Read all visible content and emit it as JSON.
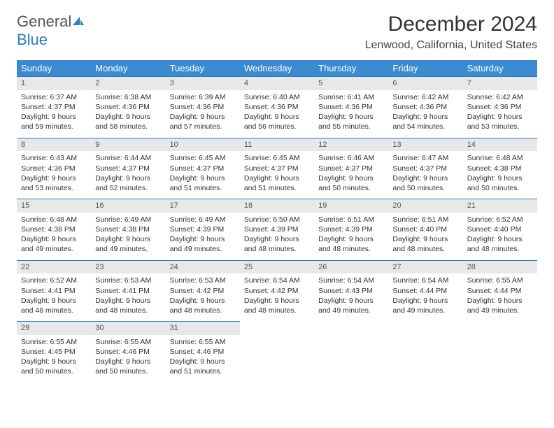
{
  "logo": {
    "part1": "General",
    "part2": "Blue"
  },
  "title": "December 2024",
  "location": "Lenwood, California, United States",
  "header_bg": "#3a8bd0",
  "accent": "#2d7bc0",
  "daynum_bg": "#e8e8e8",
  "days_of_week": [
    "Sunday",
    "Monday",
    "Tuesday",
    "Wednesday",
    "Thursday",
    "Friday",
    "Saturday"
  ],
  "weeks": [
    [
      {
        "n": "1",
        "sr": "6:37 AM",
        "ss": "4:37 PM",
        "dl": "9 hours and 59 minutes."
      },
      {
        "n": "2",
        "sr": "6:38 AM",
        "ss": "4:36 PM",
        "dl": "9 hours and 58 minutes."
      },
      {
        "n": "3",
        "sr": "6:39 AM",
        "ss": "4:36 PM",
        "dl": "9 hours and 57 minutes."
      },
      {
        "n": "4",
        "sr": "6:40 AM",
        "ss": "4:36 PM",
        "dl": "9 hours and 56 minutes."
      },
      {
        "n": "5",
        "sr": "6:41 AM",
        "ss": "4:36 PM",
        "dl": "9 hours and 55 minutes."
      },
      {
        "n": "6",
        "sr": "6:42 AM",
        "ss": "4:36 PM",
        "dl": "9 hours and 54 minutes."
      },
      {
        "n": "7",
        "sr": "6:42 AM",
        "ss": "4:36 PM",
        "dl": "9 hours and 53 minutes."
      }
    ],
    [
      {
        "n": "8",
        "sr": "6:43 AM",
        "ss": "4:36 PM",
        "dl": "9 hours and 53 minutes."
      },
      {
        "n": "9",
        "sr": "6:44 AM",
        "ss": "4:37 PM",
        "dl": "9 hours and 52 minutes."
      },
      {
        "n": "10",
        "sr": "6:45 AM",
        "ss": "4:37 PM",
        "dl": "9 hours and 51 minutes."
      },
      {
        "n": "11",
        "sr": "6:45 AM",
        "ss": "4:37 PM",
        "dl": "9 hours and 51 minutes."
      },
      {
        "n": "12",
        "sr": "6:46 AM",
        "ss": "4:37 PM",
        "dl": "9 hours and 50 minutes."
      },
      {
        "n": "13",
        "sr": "6:47 AM",
        "ss": "4:37 PM",
        "dl": "9 hours and 50 minutes."
      },
      {
        "n": "14",
        "sr": "6:48 AM",
        "ss": "4:38 PM",
        "dl": "9 hours and 50 minutes."
      }
    ],
    [
      {
        "n": "15",
        "sr": "6:48 AM",
        "ss": "4:38 PM",
        "dl": "9 hours and 49 minutes."
      },
      {
        "n": "16",
        "sr": "6:49 AM",
        "ss": "4:38 PM",
        "dl": "9 hours and 49 minutes."
      },
      {
        "n": "17",
        "sr": "6:49 AM",
        "ss": "4:39 PM",
        "dl": "9 hours and 49 minutes."
      },
      {
        "n": "18",
        "sr": "6:50 AM",
        "ss": "4:39 PM",
        "dl": "9 hours and 48 minutes."
      },
      {
        "n": "19",
        "sr": "6:51 AM",
        "ss": "4:39 PM",
        "dl": "9 hours and 48 minutes."
      },
      {
        "n": "20",
        "sr": "6:51 AM",
        "ss": "4:40 PM",
        "dl": "9 hours and 48 minutes."
      },
      {
        "n": "21",
        "sr": "6:52 AM",
        "ss": "4:40 PM",
        "dl": "9 hours and 48 minutes."
      }
    ],
    [
      {
        "n": "22",
        "sr": "6:52 AM",
        "ss": "4:41 PM",
        "dl": "9 hours and 48 minutes."
      },
      {
        "n": "23",
        "sr": "6:53 AM",
        "ss": "4:41 PM",
        "dl": "9 hours and 48 minutes."
      },
      {
        "n": "24",
        "sr": "6:53 AM",
        "ss": "4:42 PM",
        "dl": "9 hours and 48 minutes."
      },
      {
        "n": "25",
        "sr": "6:54 AM",
        "ss": "4:42 PM",
        "dl": "9 hours and 48 minutes."
      },
      {
        "n": "26",
        "sr": "6:54 AM",
        "ss": "4:43 PM",
        "dl": "9 hours and 49 minutes."
      },
      {
        "n": "27",
        "sr": "6:54 AM",
        "ss": "4:44 PM",
        "dl": "9 hours and 49 minutes."
      },
      {
        "n": "28",
        "sr": "6:55 AM",
        "ss": "4:44 PM",
        "dl": "9 hours and 49 minutes."
      }
    ],
    [
      {
        "n": "29",
        "sr": "6:55 AM",
        "ss": "4:45 PM",
        "dl": "9 hours and 50 minutes."
      },
      {
        "n": "30",
        "sr": "6:55 AM",
        "ss": "4:46 PM",
        "dl": "9 hours and 50 minutes."
      },
      {
        "n": "31",
        "sr": "6:55 AM",
        "ss": "4:46 PM",
        "dl": "9 hours and 51 minutes."
      },
      null,
      null,
      null,
      null
    ]
  ],
  "labels": {
    "sunrise": "Sunrise: ",
    "sunset": "Sunset: ",
    "daylight": "Daylight: "
  }
}
